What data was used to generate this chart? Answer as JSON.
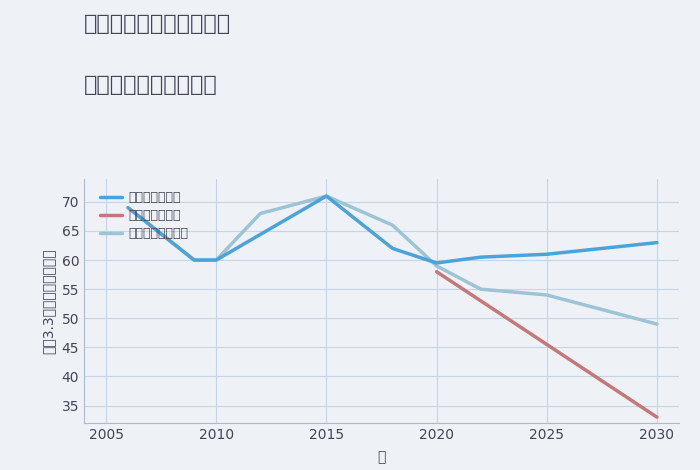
{
  "title_line1": "三重県鈴鹿市南若松町の",
  "title_line2": "中古戸建ての価格推移",
  "xlabel": "年",
  "ylabel": "坪（3.3㎡）単価（万円）",
  "background_color": "#eef2f7",
  "plot_background": "#eef2f7",
  "grid_color": "#c5d5e5",
  "good_scenario": {
    "label": "グッドシナリオ",
    "color": "#4ba3dc",
    "linewidth": 2.5,
    "x": [
      2006,
      2009,
      2010,
      2015,
      2018,
      2020,
      2022,
      2025,
      2030
    ],
    "y": [
      69,
      60,
      60,
      71,
      62,
      59.5,
      60.5,
      61,
      63
    ]
  },
  "bad_scenario": {
    "label": "バッドシナリオ",
    "color": "#c47878",
    "linewidth": 2.5,
    "x": [
      2020,
      2030
    ],
    "y": [
      58,
      33
    ]
  },
  "normal_scenario": {
    "label": "ノーマルシナリオ",
    "color": "#9dc4d4",
    "linewidth": 2.5,
    "x": [
      2006,
      2009,
      2010,
      2012,
      2015,
      2018,
      2020,
      2022,
      2025,
      2030
    ],
    "y": [
      69,
      60,
      60,
      68,
      71,
      66,
      59,
      55,
      54,
      49
    ]
  },
  "xlim": [
    2004,
    2031
  ],
  "ylim": [
    32,
    74
  ],
  "xticks": [
    2005,
    2010,
    2015,
    2020,
    2025,
    2030
  ],
  "yticks": [
    35,
    40,
    45,
    50,
    55,
    60,
    65,
    70
  ],
  "title_fontsize": 16,
  "tick_fontsize": 10,
  "label_fontsize": 10,
  "legend_fontsize": 9,
  "text_color": "#444455",
  "spine_color": "#aabbcc"
}
